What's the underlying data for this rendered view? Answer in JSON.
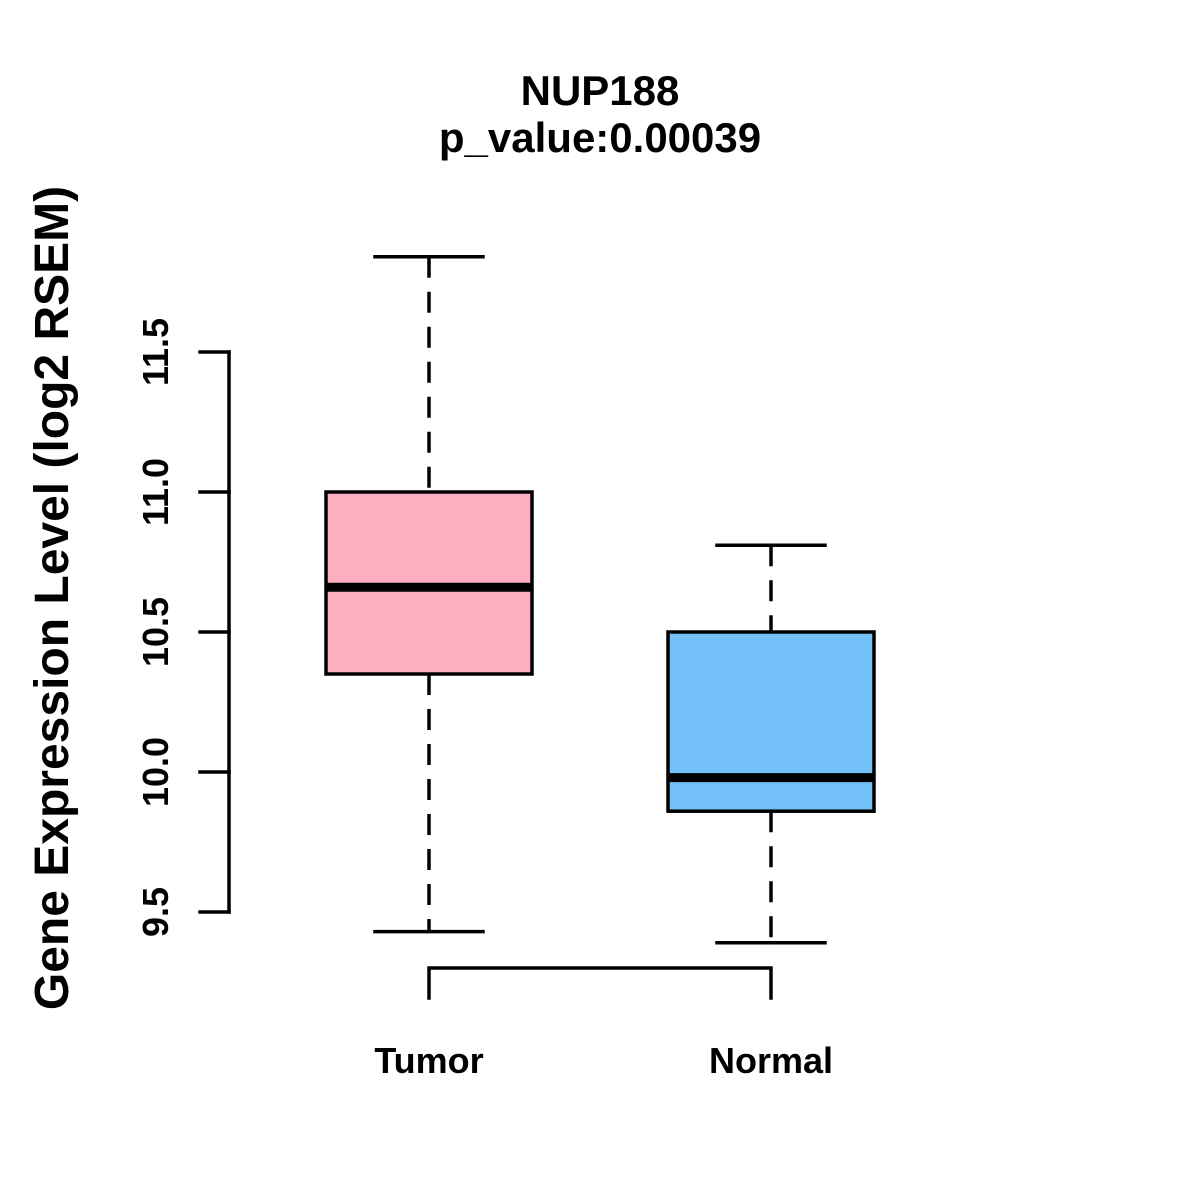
{
  "header": {
    "title": "NUP188",
    "subtitle": "p_value:0.00039"
  },
  "chart_data": {
    "type": "boxplot",
    "title": "NUP188",
    "subtitle": "p_value:0.00039",
    "xlabel": "",
    "ylabel": "Gene Expression Level (log2 RSEM)",
    "ylim": [
      9.3,
      11.9
    ],
    "y_axis_drawn_range": [
      9.5,
      11.5
    ],
    "y_ticks": [
      9.5,
      10.0,
      10.5,
      11.0,
      11.5
    ],
    "grid": false,
    "legend": "none",
    "categories": [
      "Tumor",
      "Normal"
    ],
    "groups": [
      {
        "label": "Tumor",
        "color": "#FCAFC1",
        "whisker_low": 9.43,
        "q1": 10.35,
        "median": 10.66,
        "q3": 11.0,
        "whisker_high": 11.84
      },
      {
        "label": "Normal",
        "color": "#73BFF7",
        "whisker_low": 9.39,
        "q1": 9.86,
        "median": 9.98,
        "q3": 10.5,
        "whisker_high": 10.81
      }
    ],
    "comparison_bracket": {
      "between": [
        "Tumor",
        "Normal"
      ],
      "p_value_label": "p_value:0.00039"
    },
    "styles": {
      "line_color": "#000000",
      "text_color": "#000000",
      "whisker_line_style": "dashed",
      "background": "#FFFFFF"
    }
  }
}
